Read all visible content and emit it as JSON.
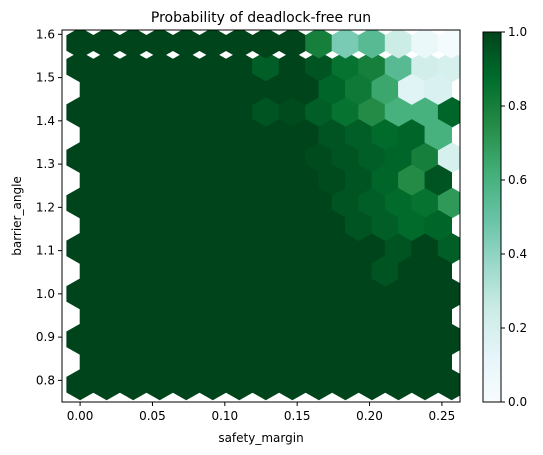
{
  "chart_data": {
    "type": "heatmap",
    "subtype": "hexbin",
    "title": "Probability of deadlock-free run",
    "xlabel": "safety_margin",
    "ylabel": "barrier_angle",
    "xlim": [
      -0.0125,
      0.2625
    ],
    "ylim": [
      0.75,
      1.61
    ],
    "xticks": [
      0.0,
      0.05,
      0.1,
      0.15,
      0.2,
      0.25
    ],
    "xtick_labels": [
      "0.00",
      "0.05",
      "0.10",
      "0.15",
      "0.20",
      "0.25"
    ],
    "yticks": [
      0.8,
      0.9,
      1.0,
      1.1,
      1.2,
      1.3,
      1.4,
      1.5,
      1.6
    ],
    "ytick_labels": [
      "0.8",
      "0.9",
      "1.0",
      "1.1",
      "1.2",
      "1.3",
      "1.4",
      "1.5",
      "1.6"
    ],
    "grid": false,
    "colormap": "BuGn",
    "colorbar": {
      "range": [
        0.0,
        1.0
      ],
      "ticks": [
        0.0,
        0.2,
        0.4,
        0.6,
        0.8,
        1.0
      ],
      "tick_labels": [
        "0.0",
        "0.2",
        "0.4",
        "0.6",
        "0.8",
        "1.0"
      ],
      "colors": [
        "#f7fcfd",
        "#e5f5f9",
        "#ccece6",
        "#99d8c9",
        "#66c2a4",
        "#41ae76",
        "#238b45",
        "#006d2c",
        "#00441b"
      ]
    },
    "grid_x": [
      0.0,
      0.0183,
      0.0367,
      0.055,
      0.0733,
      0.0917,
      0.11,
      0.1283,
      0.1467,
      0.165,
      0.1833,
      0.2017,
      0.22,
      0.2383,
      0.2567
    ],
    "rows_primary_y": [
      0.79,
      0.895,
      1.0,
      1.105,
      1.21,
      1.315,
      1.42,
      1.525,
      1.58
    ],
    "rows_offset_y": [
      0.843,
      0.948,
      1.053,
      1.158,
      1.263,
      1.368,
      1.473
    ],
    "offset_x": [
      0.0092,
      0.0275,
      0.0458,
      0.0642,
      0.0825,
      0.1008,
      0.1192,
      0.1375,
      0.1558,
      0.1742,
      0.1925,
      0.2108,
      0.2292,
      0.2475
    ],
    "primary_values": [
      [
        1,
        1,
        1,
        1,
        1,
        1,
        1,
        1,
        1,
        1,
        1,
        1,
        1,
        1,
        1
      ],
      [
        1,
        1,
        1,
        1,
        1,
        1,
        1,
        1,
        1,
        1,
        1,
        1,
        1,
        1,
        1
      ],
      [
        1,
        1,
        1,
        1,
        1,
        1,
        1,
        1,
        1,
        1,
        1,
        1,
        1,
        1,
        1
      ],
      [
        1,
        1,
        1,
        1,
        1,
        1,
        1,
        1,
        1,
        1,
        1,
        1,
        0.95,
        1,
        0.92
      ],
      [
        1,
        1,
        1,
        1,
        1,
        1,
        1,
        1,
        1,
        1,
        0.95,
        0.92,
        0.88,
        0.85,
        0.7
      ],
      [
        1,
        1,
        1,
        1,
        1,
        1,
        1,
        1,
        1,
        0.98,
        0.95,
        0.92,
        0.9,
        0.8,
        0.2
      ],
      [
        1,
        1,
        1,
        1,
        1,
        1,
        1,
        0.95,
        0.98,
        0.92,
        0.85,
        0.75,
        0.6,
        0.6,
        0.9
      ],
      [
        1,
        1,
        1,
        1,
        1,
        1,
        1,
        0.92,
        1,
        0.95,
        0.85,
        0.8,
        0.55,
        0.22,
        0.2
      ],
      [
        1,
        1,
        1,
        1,
        1,
        1,
        1,
        1,
        1,
        0.8,
        0.45,
        0.55,
        0.25,
        0.08,
        0.02
      ]
    ],
    "offset_values": [
      [
        1,
        1,
        1,
        1,
        1,
        1,
        1,
        1,
        1,
        1,
        1,
        1,
        1,
        1
      ],
      [
        1,
        1,
        1,
        1,
        1,
        1,
        1,
        1,
        1,
        1,
        1,
        1,
        1,
        1
      ],
      [
        1,
        1,
        1,
        1,
        1,
        1,
        1,
        1,
        1,
        1,
        1,
        0.95,
        1,
        1
      ],
      [
        1,
        1,
        1,
        1,
        1,
        1,
        1,
        1,
        1,
        1,
        0.95,
        0.92,
        0.88,
        0.9
      ],
      [
        1,
        1,
        1,
        1,
        1,
        1,
        1,
        1,
        1,
        0.98,
        0.95,
        0.9,
        0.75,
        0.95
      ],
      [
        1,
        1,
        1,
        1,
        1,
        1,
        1,
        1,
        1,
        0.95,
        0.92,
        0.88,
        0.9,
        0.6
      ],
      [
        1,
        1,
        1,
        1,
        1,
        1,
        1,
        1,
        1,
        0.9,
        0.82,
        0.65,
        0.15,
        0.18
      ]
    ]
  }
}
